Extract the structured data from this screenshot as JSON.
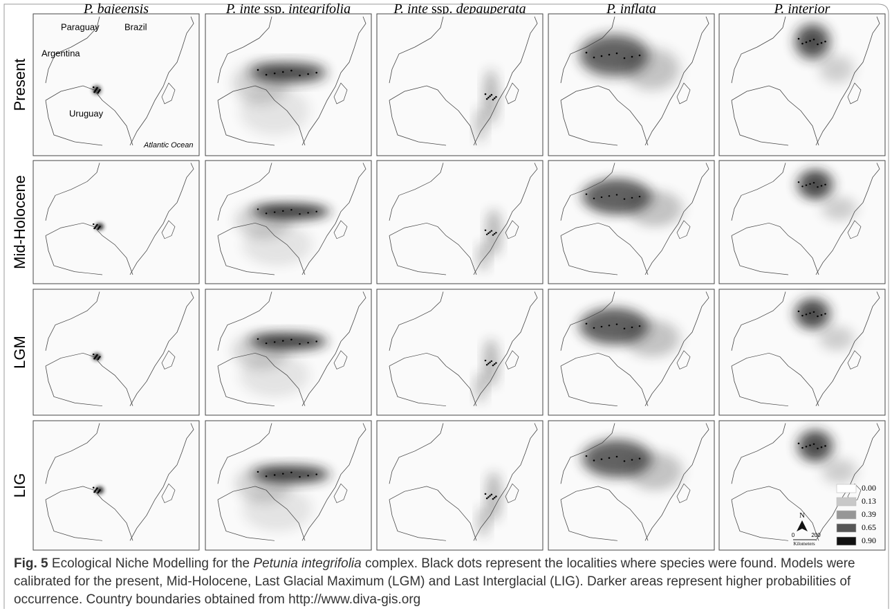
{
  "columns": [
    [
      {
        "text": "P. bajeensis",
        "italic": true
      }
    ],
    [
      {
        "text": "P. inte",
        "italic": true
      },
      {
        "text": " ssp. ",
        "italic": false
      },
      {
        "text": "integrifolia",
        "italic": true
      }
    ],
    [
      {
        "text": "P. inte",
        "italic": true
      },
      {
        "text": " ssp. ",
        "italic": false
      },
      {
        "text": "depauperata",
        "italic": true
      }
    ],
    [
      {
        "text": "P. inflata",
        "italic": true
      }
    ],
    [
      {
        "text": "P. interior",
        "italic": true
      }
    ]
  ],
  "rows": [
    "Present",
    "Mid-Holocene",
    "LGM",
    "LIG"
  ],
  "map_labels": [
    {
      "text": "Paraguay",
      "italic": false
    },
    {
      "text": "Brazil",
      "italic": false
    },
    {
      "text": "Argentina",
      "italic": false
    },
    {
      "text": "Uruguay",
      "italic": false
    },
    {
      "text": "Atlantic Ocean",
      "italic": true
    }
  ],
  "legend": {
    "values": [
      "0.00",
      "0.13",
      "0.39",
      "0.65",
      "0.90"
    ],
    "colors": [
      "#ffffff",
      "#c8c8c8",
      "#969696",
      "#555555",
      "#111111"
    ],
    "north": "N",
    "scale": [
      "0",
      "200"
    ],
    "scale_unit": "Kilometers"
  },
  "caption": [
    {
      "text": "Fig. 5",
      "bold": true,
      "italic": false
    },
    {
      "text": " Ecological Niche Modelling for the ",
      "bold": false,
      "italic": false
    },
    {
      "text": "Petunia integrifolia",
      "bold": false,
      "italic": true
    },
    {
      "text": " complex. Black dots represent the localities where species were found. Models were calibrated for the present, Mid-Holocene, Last Glacial Maximum (LGM) and Last Interglacial (LIG). Darker areas represent higher probabilities of occurrence. Country boundaries obtained from http://www.diva-gis.org",
      "bold": false,
      "italic": false
    }
  ]
}
